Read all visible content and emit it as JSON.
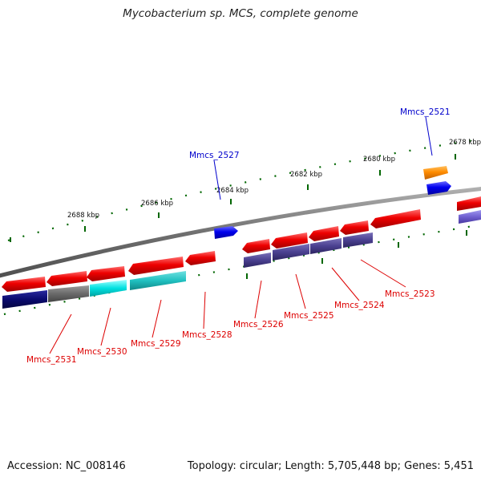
{
  "title": "Mycobacterium sp. MCS, complete genome",
  "footer": {
    "accession": "Accession: NC_008146",
    "topology": "Topology: circular; Length: 5,705,448 bp; Genes: 5,451"
  },
  "scale_labels": [
    "2678 kbp",
    "2680 kbp",
    "2682 kbp",
    "2684 kbp",
    "2686 kbp",
    "2688 kbp"
  ],
  "gene_labels": [
    {
      "text": "Mmcs_2521",
      "color": "#0000cc"
    },
    {
      "text": "Mmcs_2527",
      "color": "#0000cc"
    },
    {
      "text": "Mmcs_2523",
      "color": "#dd0000"
    },
    {
      "text": "Mmcs_2524",
      "color": "#dd0000"
    },
    {
      "text": "Mmcs_2525",
      "color": "#dd0000"
    },
    {
      "text": "Mmcs_2526",
      "color": "#dd0000"
    },
    {
      "text": "Mmcs_2528",
      "color": "#dd0000"
    },
    {
      "text": "Mmcs_2529",
      "color": "#dd0000"
    },
    {
      "text": "Mmcs_2530",
      "color": "#dd0000"
    },
    {
      "text": "Mmcs_2531",
      "color": "#dd0000"
    }
  ],
  "colors": {
    "gene_red": "#ee0000",
    "gene_blue": "#0000ee",
    "gene_orange": "#ff8c00",
    "cog_navy": "#0a0a6e",
    "cog_gray": "#6a6a6a",
    "cog_cyan": "#00e0e0",
    "cog_teal": "#20c0c0",
    "cog_slate": "#4a4090",
    "cog_lavender": "#7060d0",
    "backbone": "#707070",
    "tick_green": "#006600"
  }
}
